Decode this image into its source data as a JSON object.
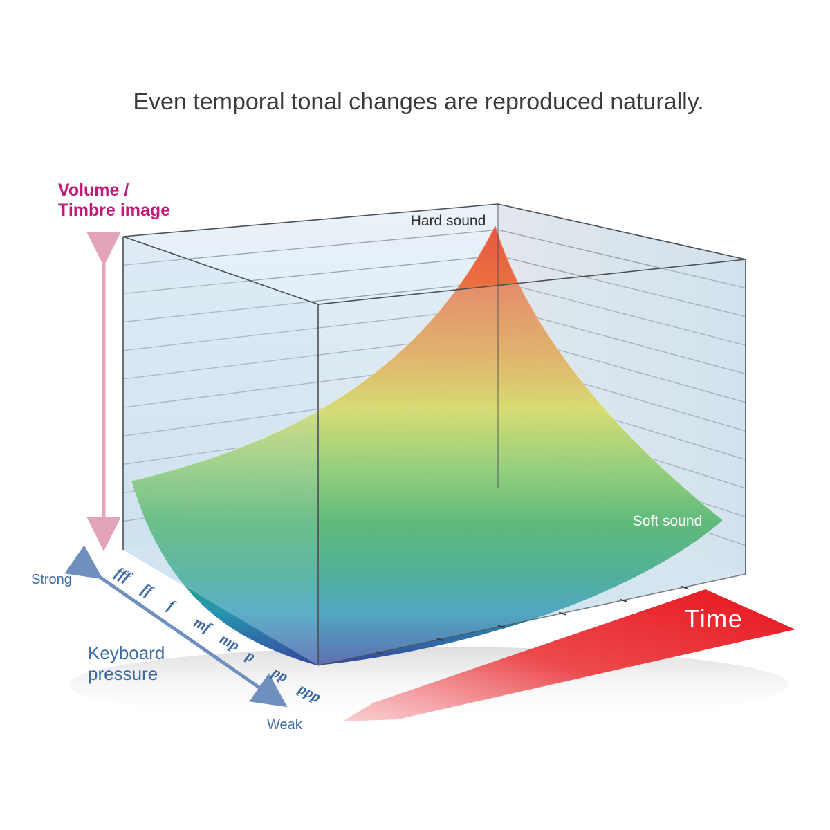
{
  "title": "Even temporal tonal changes are reproduced naturally.",
  "axes": {
    "vertical_label_line1": "Volume /",
    "vertical_label_line2": "Timbre image",
    "depth_label_line1": "Keyboard",
    "depth_label_line2": "pressure",
    "depth_strong": "Strong",
    "depth_weak": "Weak",
    "time_label": "Time"
  },
  "dynamics": [
    "fff",
    "ff",
    "f",
    "mf",
    "mp",
    "p",
    "pp",
    "ppp"
  ],
  "annotations": {
    "peak": "Hard sound",
    "low": "Soft sound"
  },
  "colors": {
    "title_text": "#3a3a3a",
    "vertical_label": "#c2187a",
    "vertical_arrow": "#e3a3b9",
    "depth_text": "#3d6aa3",
    "depth_arrow": "#6f8fbf",
    "time_arrow": "#e8141c",
    "surface_peak": "#e8503a",
    "surface_mid": "#d8d640",
    "surface_green": "#27a24c",
    "surface_low": "#2d3f9a"
  }
}
